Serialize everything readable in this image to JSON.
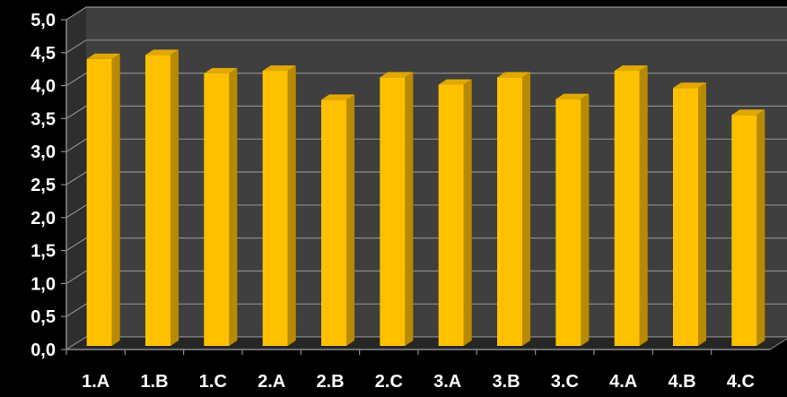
{
  "chart_data": {
    "type": "bar",
    "categories": [
      "1.A",
      "1.B",
      "1.C",
      "2.A",
      "2.B",
      "2.C",
      "3.A",
      "3.B",
      "3.C",
      "4.A",
      "4.B",
      "4.C"
    ],
    "values": [
      4.46,
      4.52,
      4.24,
      4.28,
      3.84,
      4.18,
      4.07,
      4.18,
      3.85,
      4.28,
      4.02,
      3.61
    ],
    "y_tick_labels": [
      "0,0",
      "0,5",
      "1,0",
      "1,5",
      "2,0",
      "2,5",
      "3,0",
      "3,5",
      "4,0",
      "4,5",
      "5,0"
    ],
    "ylim": [
      0,
      5
    ],
    "title": "",
    "xlabel": "",
    "ylabel": "",
    "grid": true,
    "legend": "none",
    "colors": {
      "background": "#000000",
      "plot_wall": "#3f3f3f",
      "floor": "#262626",
      "gridline": "#8c8c8c",
      "bar_front": "#ffc000",
      "bar_side": "#b88a00",
      "bar_top": "#e0a800",
      "text": "#ffffff"
    }
  }
}
